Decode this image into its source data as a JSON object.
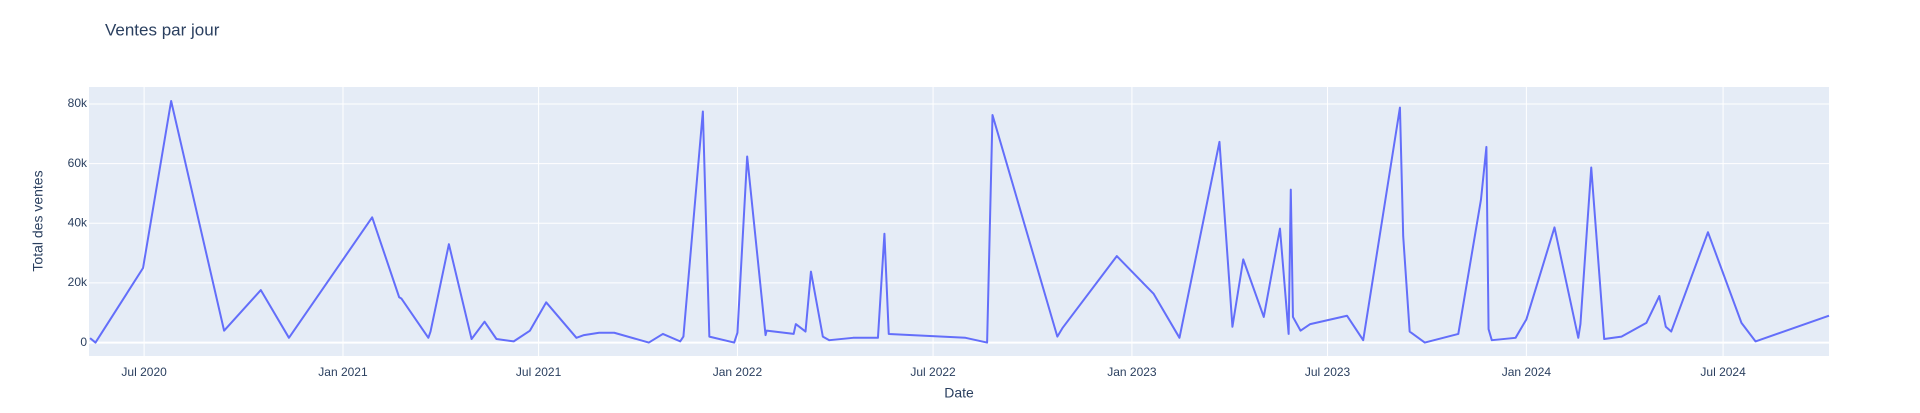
{
  "chart_data": {
    "type": "line",
    "title": "Ventes par jour",
    "x_label": "Date",
    "y_label": "Total des ventes",
    "color": "#636efa",
    "grid": true,
    "xlim": [
      "2020-05-11",
      "2024-10-07"
    ],
    "xticks": [
      {
        "value": "2020-07-01",
        "label": "Jul 2020"
      },
      {
        "value": "2021-01-01",
        "label": "Jan 2021"
      },
      {
        "value": "2021-07-01",
        "label": "Jul 2021"
      },
      {
        "value": "2022-01-01",
        "label": "Jan 2022"
      },
      {
        "value": "2022-07-01",
        "label": "Jul 2022"
      },
      {
        "value": "2023-01-01",
        "label": "Jan 2023"
      },
      {
        "value": "2023-07-01",
        "label": "Jul 2023"
      },
      {
        "value": "2024-01-01",
        "label": "Jan 2024"
      },
      {
        "value": "2024-07-01",
        "label": "Jul 2024"
      }
    ],
    "ylim": [
      -4500,
      85700
    ],
    "yticks": [
      0,
      {
        "value": 20000,
        "label": "20k"
      },
      {
        "value": 40000,
        "label": "40k"
      },
      {
        "value": 60000,
        "label": "60k"
      },
      {
        "value": 80000,
        "label": "80k"
      }
    ],
    "x": [
      "2020-05-12",
      "2020-05-17",
      "2020-06-30",
      "2020-07-26",
      "2020-09-13",
      "2020-10-17",
      "2020-11-12",
      "2021-01-28",
      "2021-02-22",
      "2021-02-24",
      "2021-03-21",
      "2021-03-23",
      "2021-04-09",
      "2021-04-30",
      "2021-05-12",
      "2021-05-23",
      "2021-06-08",
      "2021-06-23",
      "2021-07-08",
      "2021-08-05",
      "2021-08-12",
      "2021-08-26",
      "2021-09-09",
      "2021-10-11",
      "2021-10-24",
      "2021-11-09",
      "2021-11-12",
      "2021-11-25",
      "2021-11-30",
      "2021-12-06",
      "2021-12-29",
      "2022-01-01",
      "2022-01-10",
      "2022-01-27",
      "2022-01-28",
      "2022-02-22",
      "2022-02-24",
      "2022-03-05",
      "2022-03-10",
      "2022-03-21",
      "2022-03-27",
      "2022-04-18",
      "2022-05-11",
      "2022-05-17",
      "2022-05-21",
      "2022-07-31",
      "2022-08-20",
      "2022-08-25",
      "2022-10-24",
      "2022-10-29",
      "2022-12-18",
      "2023-01-21",
      "2023-02-14",
      "2023-03-23",
      "2023-04-04",
      "2023-04-14",
      "2023-05-03",
      "2023-05-18",
      "2023-05-26",
      "2023-05-28",
      "2023-05-30",
      "2023-06-06",
      "2023-06-15",
      "2023-07-19",
      "2023-08-03",
      "2023-09-06",
      "2023-09-09",
      "2023-09-15",
      "2023-09-29",
      "2023-10-30",
      "2023-11-20",
      "2023-11-25",
      "2023-11-27",
      "2023-11-30",
      "2023-12-22",
      "2024-01-01",
      "2024-01-27",
      "2024-02-18",
      "2024-02-20",
      "2024-03-01",
      "2024-03-13",
      "2024-03-29",
      "2024-04-21",
      "2024-05-03",
      "2024-05-09",
      "2024-05-14",
      "2024-06-17",
      "2024-07-18",
      "2024-07-31",
      "2024-10-07"
    ],
    "values": [
      1500,
      0,
      25000,
      81000,
      4000,
      17600,
      1600,
      42000,
      15200,
      14800,
      1600,
      3700,
      33000,
      1200,
      7000,
      1200,
      400,
      4000,
      13500,
      1600,
      2500,
      3300,
      3300,
      0,
      2900,
      400,
      2000,
      56600,
      77500,
      2000,
      0,
      3300,
      62400,
      2500,
      4000,
      2900,
      6200,
      3700,
      23800,
      2000,
      800,
      1600,
      1600,
      36500,
      2900,
      1600,
      0,
      76300,
      2000,
      5000,
      29000,
      16400,
      1600,
      67300,
      5300,
      27900,
      8600,
      38200,
      2900,
      51300,
      8600,
      4000,
      6200,
      9000,
      800,
      78800,
      35700,
      3700,
      0,
      2900,
      48000,
      65600,
      4500,
      800,
      1600,
      7800,
      38600,
      1600,
      6200,
      58700,
      1200,
      2000,
      6600,
      15600,
      5300,
      3700,
      37000,
      6600,
      400,
      9000
    ]
  }
}
